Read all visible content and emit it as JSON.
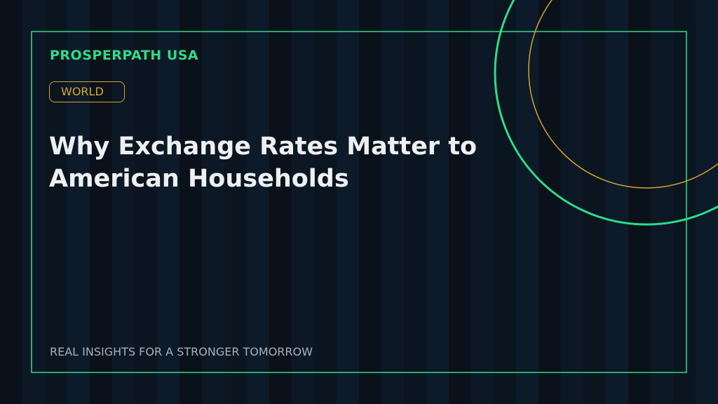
{
  "brand": "PROSPERPATH USA",
  "tag": "WORLD",
  "headline": {
    "line1": "Why Exchange Rates Matter to",
    "line2": "American Households"
  },
  "tagline": "REAL INSIGHTS FOR A STRONGER TOMORROW"
}
